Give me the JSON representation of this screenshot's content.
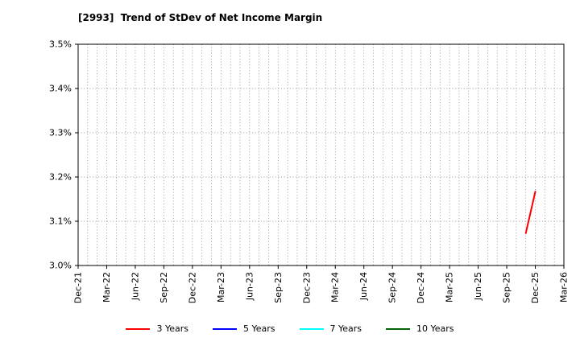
{
  "chart_data": {
    "type": "line",
    "title": "[2993]  Trend of StDev of Net Income Margin",
    "x_tick_labels": [
      "Dec-21",
      "Mar-22",
      "Jun-22",
      "Sep-22",
      "Dec-22",
      "Mar-23",
      "Jun-23",
      "Sep-23",
      "Dec-23",
      "Mar-24",
      "Jun-24",
      "Sep-24",
      "Dec-24",
      "Mar-25",
      "Jun-25",
      "Sep-25",
      "Dec-25",
      "Mar-26"
    ],
    "x_minor_interval_months": 1,
    "ylim": [
      3.0,
      3.5
    ],
    "yticks": [
      3.0,
      3.1,
      3.2,
      3.3,
      3.4,
      3.5
    ],
    "ytick_suffix": "%",
    "grid": true,
    "legend_position": "bottom",
    "series": [
      {
        "name": "3 Years",
        "color": "#ff0000",
        "points": [
          {
            "x": "Nov-25",
            "y": 3.073
          },
          {
            "x": "Dec-25",
            "y": 3.167
          }
        ]
      },
      {
        "name": "5 Years",
        "color": "#0000ff",
        "points": []
      },
      {
        "name": "7 Years",
        "color": "#00ffff",
        "points": []
      },
      {
        "name": "10 Years",
        "color": "#006400",
        "points": []
      }
    ]
  }
}
